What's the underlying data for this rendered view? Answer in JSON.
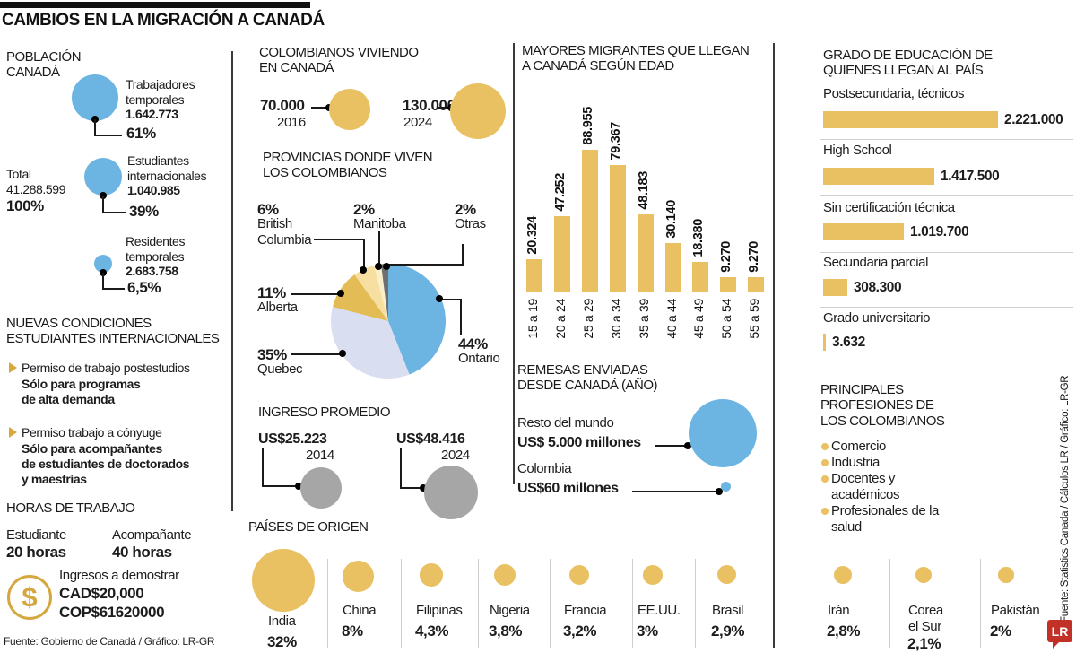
{
  "title": "CAMBIOS EN LA MIGRACIÓN A CANADÁ",
  "colors": {
    "gold": "#e9c162",
    "blue": "#6cb4e2",
    "gray": "#a6a6a6",
    "logo_red": "#c13127"
  },
  "population": {
    "heading": "POBLACIÓN\nCANADÁ",
    "total_label": "Total",
    "total_value": "41.288.599",
    "total_pct": "100%",
    "items": [
      {
        "label": "Trabajadores\ntemporales",
        "value": "1.642.773",
        "pct": "61%"
      },
      {
        "label": "Estudiantes\ninternacionales",
        "value": "1.040.985",
        "pct": "39%"
      },
      {
        "label": "Residentes\ntemporales",
        "value": "2.683.758",
        "pct": "6,5%"
      }
    ]
  },
  "conditions": {
    "heading": "NUEVAS CONDICIONES\nESTUDIANTES INTERNACIONALES",
    "items": [
      {
        "title": "Permiso de trabajo postestudios",
        "detail": "Sólo para programas\nde alta demanda"
      },
      {
        "title": "Permiso trabajo a cónyuge",
        "detail": "Sólo para acompañantes\nde estudiantes de doctorados\ny maestrías"
      }
    ]
  },
  "hours": {
    "heading": "HORAS DE TRABAJO",
    "items": [
      {
        "label": "Estudiante",
        "value": "20 horas"
      },
      {
        "label": "Acompañante",
        "value": "40 horas"
      }
    ],
    "income_label": "Ingresos a demostrar",
    "income_cad": "CAD$20,000",
    "income_cop": "COP$61620000",
    "dollar_glyph": "$"
  },
  "source_left": "Fuente: Gobierno de Canadá / Gráfico: LR-GR",
  "colombians": {
    "heading": "COLOMBIANOS VIVIENDO\nEN CANADÁ",
    "items": [
      {
        "value": "70.000",
        "year": "2016"
      },
      {
        "value": "130.000",
        "year": "2024"
      }
    ]
  },
  "provinces": {
    "heading": "PROVINCIAS DONDE VIVEN\nLOS COLOMBIANOS"
  },
  "income": {
    "heading": "INGRESO PROMEDIO",
    "items": [
      {
        "value": "US$25.223",
        "year": "2014"
      },
      {
        "value": "US$48.416",
        "year": "2024"
      }
    ]
  },
  "origin": {
    "heading": "PAÍSES DE ORIGEN"
  },
  "ages": {
    "heading": "MAYORES MIGRANTES QUE LLEGAN\nA CANADÁ SEGÚN EDAD"
  },
  "remittances": {
    "heading": "REMESAS ENVIADAS\nDESDE CANADÁ (AÑO)",
    "items": [
      {
        "label": "Resto del mundo",
        "value": "US$ 5.000 millones"
      },
      {
        "label": "Colombia",
        "value": "US$60 millones"
      }
    ]
  },
  "education": {
    "heading": "GRADO DE EDUCACIÓN DE\nQUIENES LLEGAN AL PAÍS"
  },
  "professions": {
    "heading": "PRINCIPALES\nPROFESIONES DE\nLOS COLOMBIANOS",
    "items": [
      "Comercio",
      "Industria",
      "Docentes y\nacadémicos",
      "Profesionales de la\nsalud"
    ]
  },
  "source_right": "Fuente: Statistics Canada / Cálculos LR / Gráfico: LR-GR",
  "logo_text": "LR",
  "chart_data": [
    {
      "id": "population_bubbles",
      "type": "bubble",
      "title": "POBLACIÓN CANADÁ",
      "total": {
        "label": "Total",
        "value": 41288599,
        "pct": 100
      },
      "series": [
        {
          "name": "Trabajadores temporales",
          "value": 1642773,
          "pct": 61
        },
        {
          "name": "Estudiantes internacionales",
          "value": 1040985,
          "pct": 39
        },
        {
          "name": "Residentes temporales",
          "value": 2683758,
          "pct": 6.5
        }
      ]
    },
    {
      "id": "colombians_in_canada",
      "type": "bubble",
      "title": "COLOMBIANOS VIVIENDO EN CANADÁ",
      "x": [
        "2016",
        "2024"
      ],
      "values": [
        70000,
        130000
      ]
    },
    {
      "id": "provinces_pie",
      "type": "pie",
      "title": "PROVINCIAS DONDE VIVEN LOS COLOMBIANOS",
      "labels": [
        "Ontario",
        "Quebec",
        "Alberta",
        "British Columbia",
        "Manitoba",
        "Otras"
      ],
      "values": [
        44,
        35,
        11,
        6,
        2,
        2
      ],
      "pct_labels": [
        "44%",
        "35%",
        "11%",
        "6%",
        "2%",
        "2%"
      ],
      "colors": [
        "#6cb4e2",
        "#d9def0",
        "#e4bc55",
        "#f6dfa0",
        "#faeecb",
        "#6e6f71"
      ]
    },
    {
      "id": "average_income",
      "type": "bubble",
      "title": "INGRESO PROMEDIO",
      "x": [
        "2014",
        "2024"
      ],
      "values": [
        25223,
        48416
      ],
      "value_labels": [
        "US$25.223",
        "US$48.416"
      ]
    },
    {
      "id": "age_bars",
      "type": "bar",
      "title": "MAYORES MIGRANTES QUE LLEGAN A CANADÁ SEGÚN EDAD",
      "categories": [
        "15 a 19",
        "20 a 24",
        "25 a 29",
        "30 a 34",
        "35 a 39",
        "40 a 44",
        "45 a 49",
        "50 a 54",
        "55 a 59"
      ],
      "values": [
        20324,
        47252,
        88955,
        79367,
        48183,
        30140,
        18380,
        9270,
        9270
      ],
      "value_labels": [
        "20.324",
        "47.252",
        "88.955",
        "79.367",
        "48.183",
        "30.140",
        "18.380",
        "9.270",
        "9.270"
      ],
      "bar_color": "#e9c162"
    },
    {
      "id": "remittances_bubbles",
      "type": "bubble",
      "title": "REMESAS ENVIADAS DESDE CANADÁ (AÑO)",
      "labels": [
        "Resto del mundo",
        "Colombia"
      ],
      "values_millions_usd": [
        5000,
        60
      ],
      "value_labels": [
        "US$ 5.000 millones",
        "US$60 millones"
      ]
    },
    {
      "id": "education_bars",
      "type": "bar",
      "title": "GRADO DE EDUCACIÓN DE QUIENES LLEGAN AL PAÍS",
      "categories": [
        "Postsecundaria, técnicos",
        "High School",
        "Sin certificación técnica",
        "Secundaria parcial",
        "Grado universitario"
      ],
      "values": [
        2221000,
        1417500,
        1019700,
        308300,
        3632
      ],
      "value_labels": [
        "2.221.000",
        "1.417.500",
        "1.019.700",
        "308.300",
        "3.632"
      ],
      "bar_color": "#e9c162"
    },
    {
      "id": "origin_countries",
      "type": "bubble",
      "title": "PAÍSES DE ORIGEN",
      "categories": [
        "India",
        "China",
        "Filipinas",
        "Nigeria",
        "Francia",
        "EE.UU.",
        "Brasil",
        "Irán",
        "Corea\nel Sur",
        "Pakistán"
      ],
      "values": [
        32,
        8,
        4.3,
        3.8,
        3.2,
        3,
        2.9,
        2.8,
        2.1,
        2
      ],
      "pct_labels": [
        "32%",
        "8%",
        "4,3%",
        "3,8%",
        "3,2%",
        "3%",
        "2,9%",
        "2,8%",
        "2,1%",
        "2%"
      ]
    }
  ]
}
